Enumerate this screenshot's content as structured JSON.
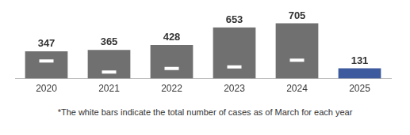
{
  "chart_data": {
    "type": "bar",
    "categories": [
      "2020",
      "2021",
      "2022",
      "2023",
      "2024",
      "2025"
    ],
    "values": [
      347,
      365,
      428,
      653,
      705,
      131
    ],
    "colors": [
      "#707070",
      "#707070",
      "#707070",
      "#707070",
      "#707070",
      "#3e5a9e"
    ],
    "march_values": [
      225,
      85,
      130,
      150,
      235
    ],
    "marker": "line",
    "data_labels": true,
    "grid": false,
    "tick_labels": "x",
    "annotation": "*The white bars indicate the total number of cases as of March for each year"
  }
}
